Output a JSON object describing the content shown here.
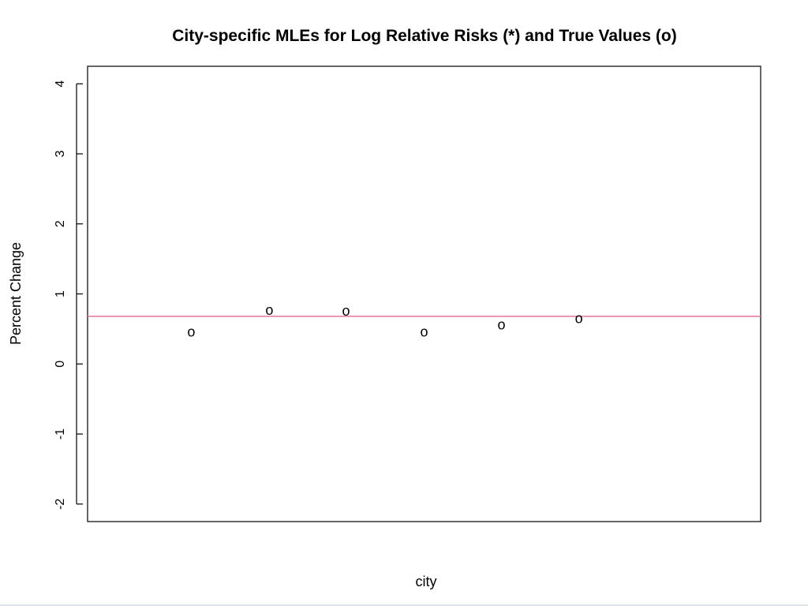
{
  "chart_data": {
    "type": "scatter",
    "title": "City-specific MLEs for Log Relative Risks (*) and True Values (o)",
    "xlabel": "city",
    "ylabel": "Percent Change",
    "xlim": [
      0.5,
      9.2
    ],
    "ylim": [
      -2.25,
      4.25
    ],
    "yticks": [
      -2,
      -1,
      0,
      1,
      2,
      3,
      4
    ],
    "ytick_labels": [
      "-2",
      "-1",
      "0",
      "1",
      "2",
      "3",
      "4"
    ],
    "grid": false,
    "legend": "none",
    "series": [
      {
        "marker": "o",
        "x": [
          1.84,
          2.85,
          3.84,
          4.85,
          5.85,
          6.85
        ],
        "y": [
          0.46,
          0.77,
          0.76,
          0.46,
          0.56,
          0.65
        ]
      }
    ],
    "reference_line": {
      "orientation": "horizontal",
      "y": 0.68,
      "color": "#e8739e"
    },
    "colors": {
      "axis": "#000000",
      "points": "#000000",
      "reference_line": "#e8739e"
    }
  }
}
